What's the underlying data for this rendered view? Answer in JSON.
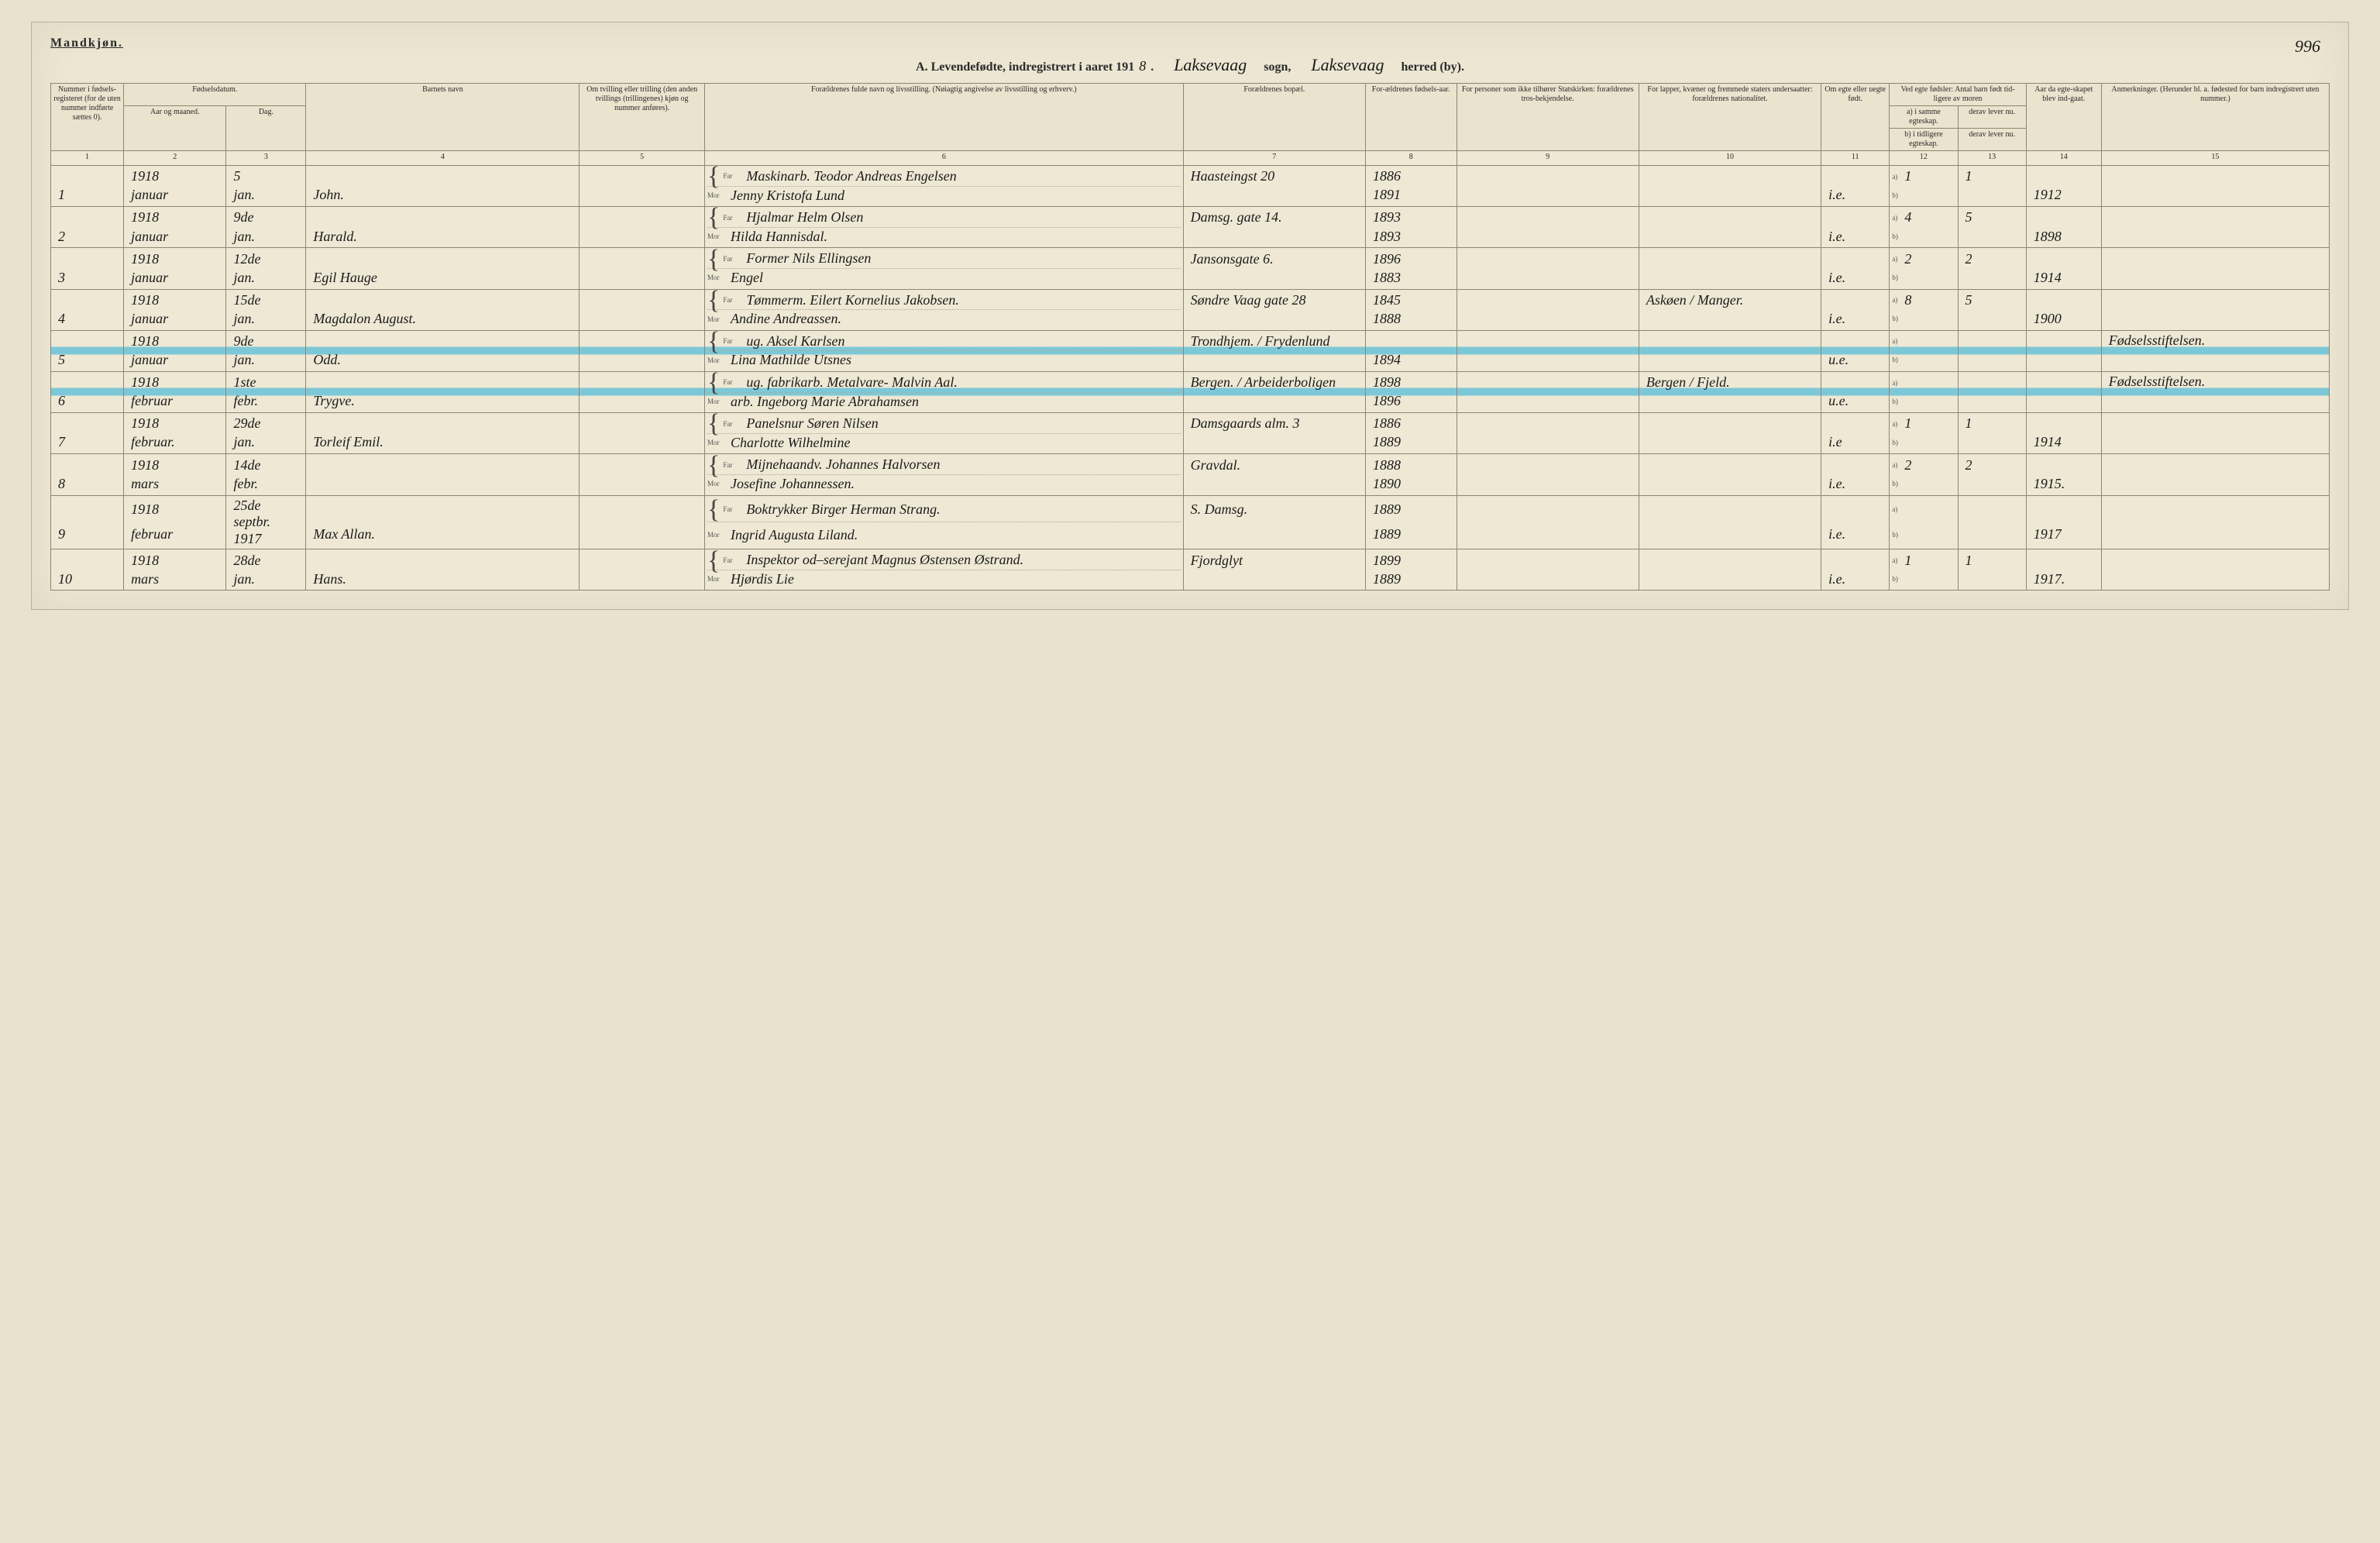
{
  "top_left_label": "Mandkjøn.",
  "page_number": "996",
  "title": {
    "prefix": "A. Levendefødte, indregistrert i aaret 191",
    "year_suffix": "8",
    "sogn_label": "sogn,",
    "herred_label": "herred (by).",
    "sogn_hand": "Laksevaag",
    "herred_hand": "Laksevaag"
  },
  "columns": {
    "c1": "Nummer i fødsels-registeret (for de uten nummer indførte sættes 0).",
    "c2_3_top": "Fødselsdatum.",
    "c2": "Aar og maaned.",
    "c3": "Dag.",
    "c4": "Barnets navn",
    "c5": "Om tvilling eller trilling (den anden tvillings (trillingenes) kjøn og nummer anføres).",
    "c6": "Forældrenes fulde navn og livsstilling. (Nøiagtig angivelse av livsstilling og erhverv.)",
    "c7": "Forældrenes bopæl.",
    "c8": "For-ældrenes fødsels-aar.",
    "c9": "For personer som ikke tilhører Statskirken: forældrenes tros-bekjendelse.",
    "c10": "For lapper, kvæner og fremmede staters undersaatter: forældrenes nationalitet.",
    "c11": "Om egte eller uegte født.",
    "c12_top": "Ved egte fødsler: Antal barn født tid-ligere av moren",
    "c12a": "a) i samme egteskap.",
    "c12b": "b) i tidligere egteskap.",
    "c13a": "derav lever nu.",
    "c13b": "derav lever nu.",
    "c14": "Aar da egte-skapet blev ind-gaat.",
    "c15": "Anmerkninger. (Herunder bl. a. fødested for barn indregistrert uten nummer.)"
  },
  "colnums": [
    "1",
    "2",
    "3",
    "4",
    "5",
    "6",
    "7",
    "8",
    "9",
    "10",
    "11",
    "12",
    "13",
    "14",
    "15"
  ],
  "far_label": "Far",
  "mor_label": "Mor",
  "ab": {
    "a": "a)",
    "b": "b)"
  },
  "rows": [
    {
      "num": "1",
      "year": "1918",
      "month": "januar",
      "day": "5",
      "day2": "jan.",
      "name": "John.",
      "far_occ": "Maskinarb.",
      "far": "Teodor Andreas Engelsen",
      "mor": "Jenny Kristofa Lund",
      "addr": "Haasteingst 20",
      "far_yr": "1886",
      "mor_yr": "1891",
      "nat": "",
      "legit": "i.e.",
      "a": "1",
      "b": "",
      "a2": "1",
      "b2": "",
      "marr": "1912",
      "note": ""
    },
    {
      "num": "2",
      "year": "1918",
      "month": "januar",
      "day": "9de",
      "day2": "jan.",
      "name": "Harald.",
      "far_occ": "",
      "far": "Hjalmar Helm Olsen",
      "mor": "Hilda Hannisdal.",
      "addr": "Damsg. gate 14.",
      "far_yr": "1893",
      "mor_yr": "1893",
      "nat": "",
      "legit": "i.e.",
      "a": "4",
      "b": "",
      "a2": "5",
      "b2": "",
      "marr": "1898",
      "note": ""
    },
    {
      "num": "3",
      "year": "1918",
      "month": "januar",
      "day": "12de",
      "day2": "jan.",
      "name": "Egil Hauge",
      "far_occ": "Former",
      "far": "Nils Ellingsen",
      "mor": "Engel",
      "addr": "Jansonsgate 6.",
      "far_yr": "1896",
      "mor_yr": "1883",
      "nat": "",
      "legit": "i.e.",
      "a": "2",
      "b": "",
      "a2": "2",
      "b2": "",
      "marr": "1914",
      "note": ""
    },
    {
      "num": "4",
      "year": "1918",
      "month": "januar",
      "day": "15de",
      "day2": "jan.",
      "name": "Magdalon August.",
      "far_occ": "Tømmerm.",
      "far": "Eilert Kornelius Jakobsen.",
      "mor": "Andine Andreassen.",
      "addr": "Søndre Vaag gate 28",
      "far_yr": "1845",
      "mor_yr": "1888",
      "nat": "Askøen / Manger.",
      "legit": "i.e.",
      "a": "8",
      "b": "",
      "a2": "5",
      "b2": "",
      "marr": "1900",
      "note": ""
    },
    {
      "num": "5",
      "year": "1918",
      "month": "januar",
      "day": "9de",
      "day2": "jan.",
      "name": "Odd.",
      "far_occ": "ug.",
      "far": "Aksel Karlsen",
      "mor": "Lina Mathilde Utsnes",
      "addr": "Trondhjem. / Frydenlund",
      "far_yr": "",
      "mor_yr": "1894",
      "nat": "",
      "legit": "u.e.",
      "a": "",
      "b": "",
      "a2": "",
      "b2": "",
      "marr": "",
      "note": "Fødselsstiftelsen.",
      "highlight": true
    },
    {
      "num": "6",
      "year": "1918",
      "month": "februar",
      "day": "1ste",
      "day2": "febr.",
      "name": "Trygve.",
      "far_occ": "ug. fabrikarb. Metalvare-",
      "far": "Malvin Aal.",
      "mor": "arb. Ingeborg Marie Abrahamsen",
      "addr": "Bergen. / Arbeiderboligen",
      "far_yr": "1898",
      "mor_yr": "1896",
      "nat": "Bergen / Fjeld.",
      "legit": "u.e.",
      "a": "",
      "b": "",
      "a2": "",
      "b2": "",
      "marr": "",
      "note": "Fødselsstiftelsen.",
      "highlight": true
    },
    {
      "num": "7",
      "year": "1918",
      "month": "februar.",
      "day": "29de",
      "day2": "jan.",
      "name": "Torleif Emil.",
      "far_occ": "Panelsnur",
      "far": "Søren Nilsen",
      "mor": "Charlotte Wilhelmine",
      "addr": "Damsgaards alm. 3",
      "far_yr": "1886",
      "mor_yr": "1889",
      "nat": "",
      "legit": "i.e",
      "a": "1",
      "b": "",
      "a2": "1",
      "b2": "",
      "marr": "1914",
      "note": ""
    },
    {
      "num": "8",
      "year": "1918",
      "month": "mars",
      "day": "14de",
      "day2": "febr.",
      "name": "",
      "far_occ": "Mijnehaandv.",
      "far": "Johannes Halvorsen",
      "mor": "Josefine Johannessen.",
      "addr": "Gravdal.",
      "far_yr": "1888",
      "mor_yr": "1890",
      "nat": "",
      "legit": "i.e.",
      "a": "2",
      "b": "",
      "a2": "2",
      "b2": "",
      "marr": "1915.",
      "note": ""
    },
    {
      "num": "9",
      "year": "1918",
      "month": "februar",
      "day": "25de septbr. 1917",
      "day2": "",
      "name": "Max Allan.",
      "far_occ": "Boktrykker",
      "far": "Birger Herman Strang.",
      "mor": "Ingrid Augusta Liland.",
      "addr": "S. Damsg.",
      "far_yr": "1889",
      "mor_yr": "1889",
      "nat": "",
      "legit": "i.e.",
      "a": "",
      "b": "",
      "a2": "",
      "b2": "",
      "marr": "1917",
      "note": ""
    },
    {
      "num": "10",
      "year": "1918",
      "month": "mars",
      "day": "28de",
      "day2": "jan.",
      "name": "Hans.",
      "far_occ": "Inspektor od–serejant",
      "far": "Magnus Østensen Østrand.",
      "mor": "Hjørdis Lie",
      "addr": "Fjordglyt",
      "far_yr": "1899",
      "mor_yr": "1889",
      "nat": "",
      "legit": "i.e.",
      "a": "1",
      "b": "",
      "a2": "1",
      "b2": "",
      "marr": "1917.",
      "note": ""
    }
  ],
  "colors": {
    "paper": "#ece6d2",
    "border": "#8c8674",
    "ink": "#2a2a2a",
    "highlight": "#7dc8d8"
  }
}
